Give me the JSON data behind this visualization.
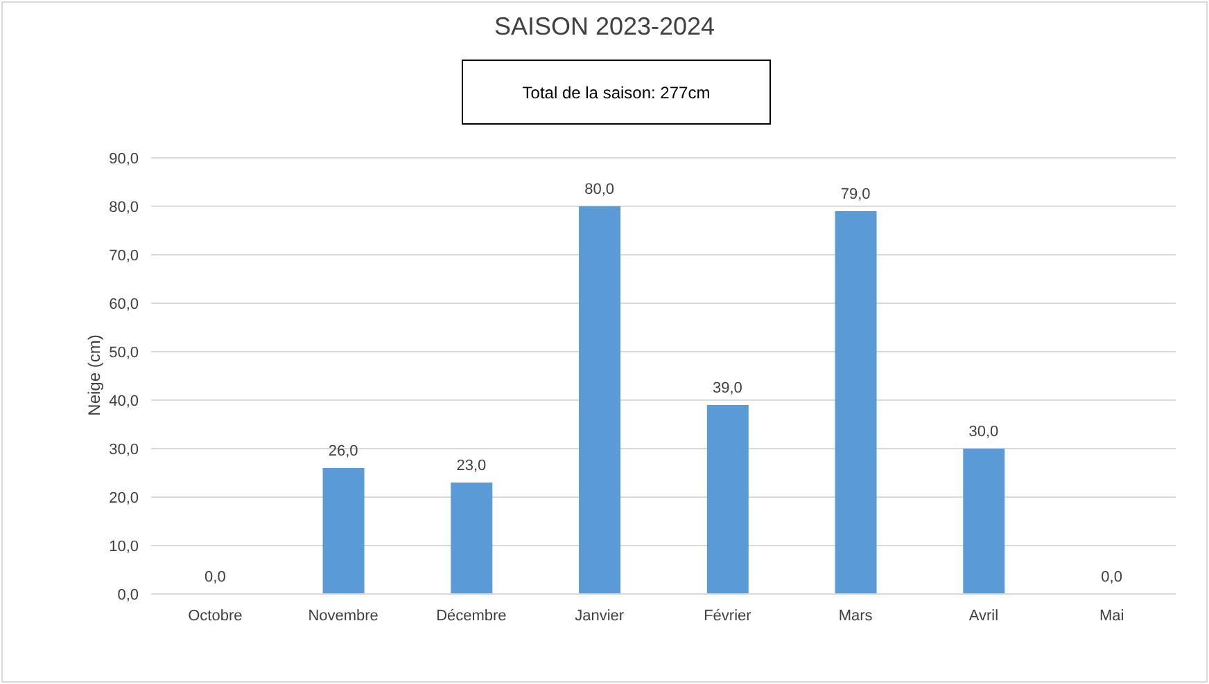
{
  "chart_data": {
    "type": "bar",
    "title": "SAISON 2023-2024",
    "annotations": [
      "Total de la saison: 277cm"
    ],
    "ylabel": "Neige (cm)",
    "categories": [
      "Octobre",
      "Novembre",
      "Décembre",
      "Janvier",
      "Février",
      "Mars",
      "Avril",
      "Mai"
    ],
    "values": [
      0,
      26,
      23,
      80,
      39,
      79,
      30,
      0
    ],
    "color": "#5b9bd5",
    "value_labels": [
      "0,0",
      "26,0",
      "23,0",
      "80,0",
      "39,0",
      "79,0",
      "30,0",
      "0,0"
    ],
    "ylim": [
      0,
      90
    ],
    "yticks": [
      {
        "value": 0,
        "label": "0,0"
      },
      {
        "value": 10,
        "label": "10,0"
      },
      {
        "value": 20,
        "label": "20,0"
      },
      {
        "value": 30,
        "label": "30,0"
      },
      {
        "value": 40,
        "label": "40,0"
      },
      {
        "value": 50,
        "label": "50,0"
      },
      {
        "value": 60,
        "label": "60,0"
      },
      {
        "value": 70,
        "label": "70,0"
      },
      {
        "value": 80,
        "label": "80,0"
      },
      {
        "value": 90,
        "label": "90,0"
      }
    ],
    "grid": "y"
  }
}
